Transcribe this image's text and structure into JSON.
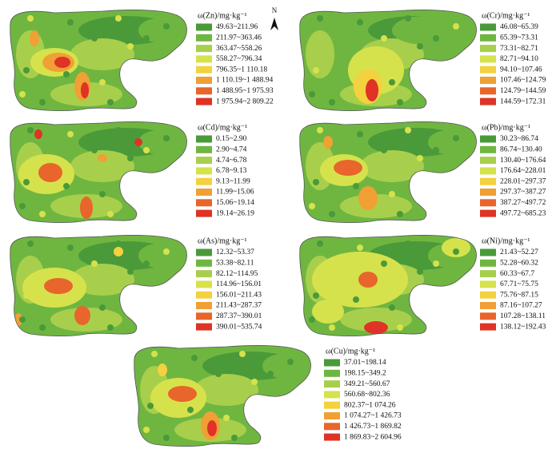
{
  "north": "N",
  "legend_colors": [
    "#4a9a3a",
    "#6fb641",
    "#a8cf4c",
    "#d6e24c",
    "#f4d13e",
    "#f0a034",
    "#e8652c",
    "#de3326"
  ],
  "panels": [
    {
      "title": "ω(Zn)/mg·kg⁻¹",
      "classes": [
        "49.63~211.96",
        "211.97~363.46",
        "363.47~558.26",
        "558.27~796.34",
        "796.35~1 110.18",
        "1 110.19~1 488.94",
        "1 488.95~1 975.93",
        "1 975.94~2 809.22"
      ]
    },
    {
      "title": "ω(Cr)/mg·kg⁻¹",
      "classes": [
        "46.08~65.39",
        "65.39~73.31",
        "73.31~82.71",
        "82.71~94.10",
        "94.10~107.46",
        "107.46~124.79",
        "124.79~144.59",
        "144.59~172.31"
      ]
    },
    {
      "title": "ω(Cd)/mg·kg⁻¹",
      "classes": [
        "0.15~2.90",
        "2.90~4.74",
        "4.74~6.78",
        "6.78~9.13",
        "9.13~11.99",
        "11.99~15.06",
        "15.06~19.14",
        "19.14~26.19"
      ]
    },
    {
      "title": "ω(Pb)/mg·kg⁻¹",
      "classes": [
        "30.23~86.74",
        "86.74~130.40",
        "130.40~176.64",
        "176.64~228.01",
        "228.01~297.37",
        "297.37~387.27",
        "387.27~497.72",
        "497.72~685.23"
      ]
    },
    {
      "title": "ω(As)/mg·kg⁻¹",
      "classes": [
        "12.32~53.37",
        "53.38~82.11",
        "82.12~114.95",
        "114.96~156.01",
        "156.01~211.43",
        "211.43~287.37",
        "287.37~390.01",
        "390.01~535.74"
      ]
    },
    {
      "title": "ω(Ni)/mg·kg⁻¹",
      "classes": [
        "21.43~52.27",
        "52.28~60.32",
        "60.33~67.7",
        "67.71~75.75",
        "75.76~87.15",
        "87.16~107.27",
        "107.28~138.11",
        "138.12~192.43"
      ]
    },
    {
      "title": "ω(Cu)/mg·kg⁻¹",
      "classes": [
        "37.01~198.14",
        "198.15~349.2",
        "349.21~560.67",
        "560.68~802.36",
        "802.37~1 074.26",
        "1 074.27~1 426.73",
        "1 426.73~1 869.82",
        "1 869.83~2 604.96"
      ]
    }
  ]
}
